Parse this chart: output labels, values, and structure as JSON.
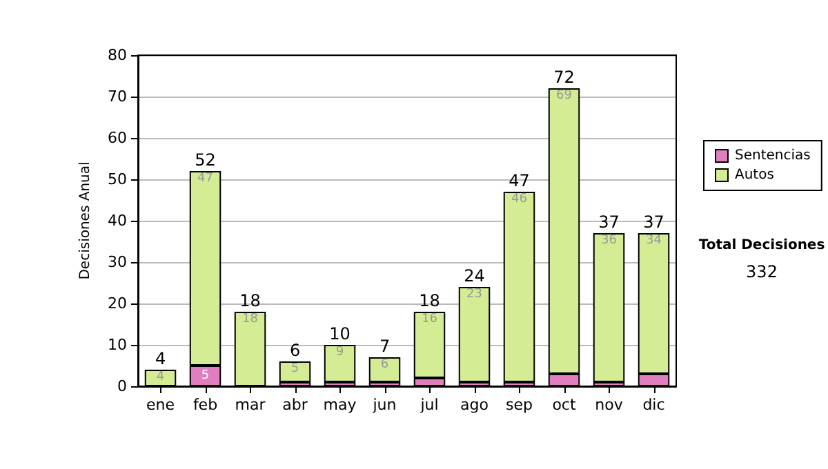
{
  "chart_data": {
    "type": "bar",
    "ylabel": "Decisiones Anual",
    "categories": [
      "ene",
      "feb",
      "mar",
      "abr",
      "may",
      "jun",
      "jul",
      "ago",
      "sep",
      "oct",
      "nov",
      "dic"
    ],
    "stacked": true,
    "series": [
      {
        "name": "Sentencias",
        "color": "#e07ec0",
        "values": [
          0,
          5,
          0,
          1,
          1,
          1,
          2,
          1,
          1,
          3,
          1,
          3
        ],
        "value_labels": [
          null,
          "5",
          null,
          null,
          null,
          null,
          null,
          null,
          null,
          null,
          null,
          null
        ]
      },
      {
        "name": "Autos",
        "color": "#d4ec94",
        "values": [
          4,
          47,
          18,
          5,
          9,
          6,
          16,
          23,
          46,
          69,
          36,
          34
        ],
        "value_labels": [
          "4",
          "47",
          "18",
          "5",
          "9",
          "6",
          "16",
          "23",
          "46",
          "69",
          "36",
          "34"
        ]
      }
    ],
    "totals": [
      "4",
      "52",
      "18",
      "6",
      "10",
      "7",
      "18",
      "24",
      "47",
      "72",
      "37",
      "37"
    ],
    "ylim": [
      0,
      80
    ],
    "yticks": [
      0,
      10,
      20,
      30,
      40,
      50,
      60,
      70,
      80
    ],
    "grid": "y",
    "legend": "right",
    "annotations": [
      "Total Decisiones",
      "332"
    ]
  }
}
